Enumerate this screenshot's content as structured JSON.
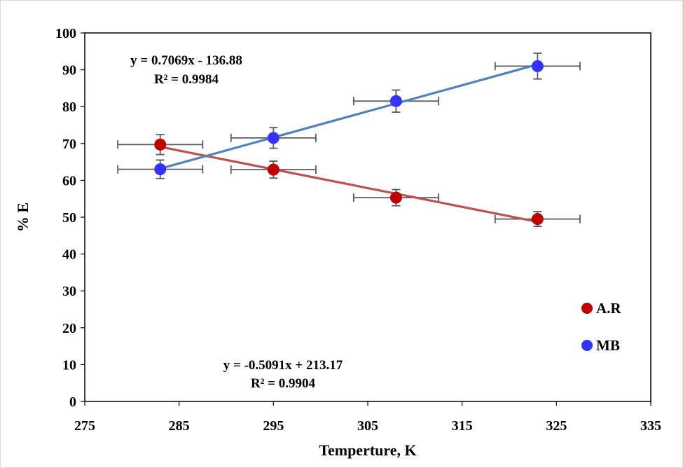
{
  "chart_data": {
    "type": "scatter",
    "title": "",
    "xlabel": "Temperture, K",
    "ylabel": "% E",
    "xlim": [
      275,
      335
    ],
    "ylim": [
      0,
      100
    ],
    "xticks": [
      275,
      285,
      295,
      305,
      315,
      325,
      335
    ],
    "yticks": [
      0,
      10,
      20,
      30,
      40,
      50,
      60,
      70,
      80,
      90,
      100
    ],
    "grid": false,
    "legend": "right",
    "series": [
      {
        "name": "A.R",
        "color": "#c00000",
        "line_color": "#c0504d",
        "x": [
          283,
          295,
          308,
          323
        ],
        "y": [
          69.7,
          62.9,
          55.3,
          49.5
        ],
        "x_err": [
          4.5,
          4.5,
          4.5,
          4.5
        ],
        "y_err": [
          2.7,
          2.3,
          2.2,
          2.0
        ],
        "trendline": {
          "slope": -0.5091,
          "intercept": 213.17,
          "x_range": [
            283,
            323
          ]
        },
        "equation": "y = -0.5091x + 213.17",
        "r2": "R² = 0.9904"
      },
      {
        "name": "MB",
        "color": "#3333ff",
        "line_color": "#4f81bd",
        "x": [
          283,
          295,
          308,
          323
        ],
        "y": [
          63.0,
          71.5,
          81.5,
          91.0
        ],
        "x_err": [
          4.5,
          4.5,
          4.5,
          4.5
        ],
        "y_err": [
          2.5,
          2.8,
          3.0,
          3.5
        ],
        "trendline": {
          "slope": 0.7069,
          "intercept": -136.88,
          "x_range": [
            283,
            323
          ]
        },
        "equation": "y = 0.7069x - 136.88",
        "r2": "R² = 0.9984"
      }
    ]
  }
}
